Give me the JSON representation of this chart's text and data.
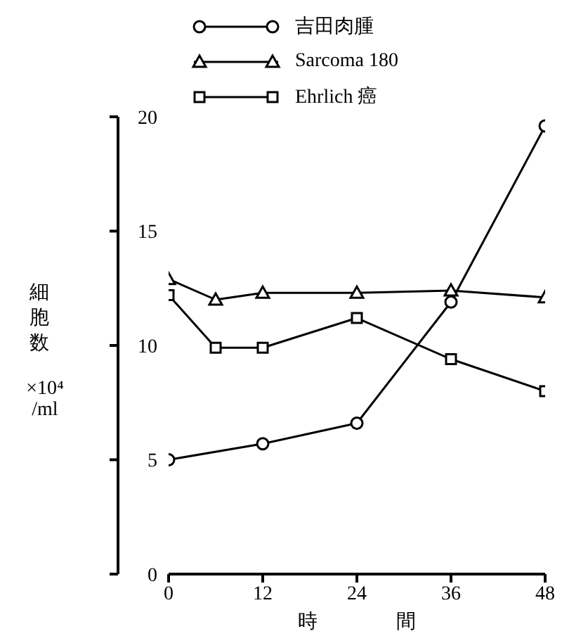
{
  "chart_data": {
    "type": "line",
    "xlabel": "時　　　　間",
    "ylabel": "細胞数\n×10⁴\n/ml",
    "xlim": [
      0,
      48
    ],
    "xticks": [
      0,
      12,
      24,
      36,
      48
    ],
    "ylim": [
      0,
      20
    ],
    "yticks": [
      0,
      5,
      10,
      15,
      20
    ],
    "legend": "top left",
    "grid": false,
    "line_style": "solid",
    "series": [
      {
        "name": "吉田肉腫",
        "color": "#000000",
        "marker": "circle",
        "x": [
          0,
          12,
          24,
          36,
          48
        ],
        "values": [
          5.0,
          5.7,
          6.6,
          11.9,
          19.6
        ]
      },
      {
        "name": "Sarcoma 180",
        "color": "#000000",
        "marker": "triangle",
        "x": [
          0,
          6,
          12,
          24,
          36,
          48
        ],
        "values": [
          12.9,
          12.0,
          12.3,
          12.3,
          12.4,
          12.1
        ]
      },
      {
        "name": "Ehrlich 癌",
        "color": "#000000",
        "marker": "square",
        "x": [
          0,
          6,
          12,
          24,
          36,
          48
        ],
        "values": [
          12.2,
          9.9,
          9.9,
          11.2,
          9.4,
          8.0
        ]
      }
    ]
  }
}
